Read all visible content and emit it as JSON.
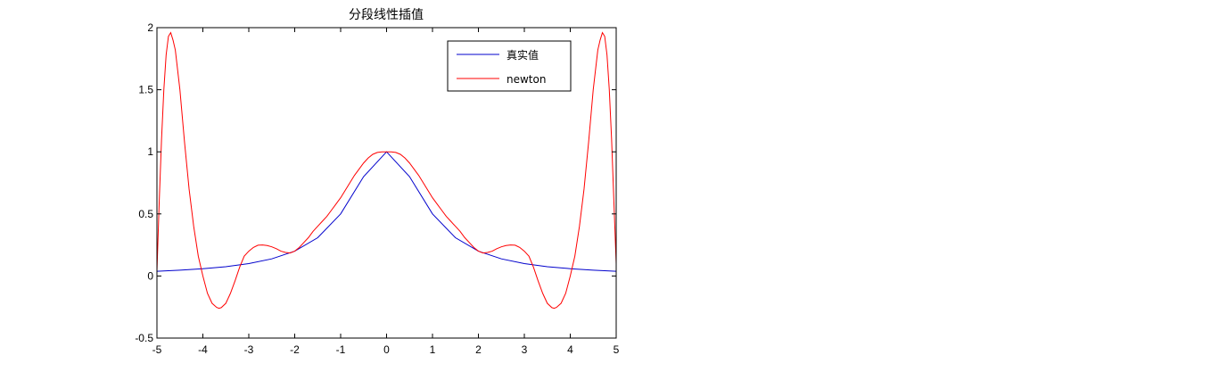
{
  "chart_data": {
    "type": "line",
    "title": "分段线性插值",
    "xlabel": "",
    "ylabel": "",
    "xlim": [
      -5,
      5
    ],
    "ylim": [
      -0.5,
      2
    ],
    "xticks": [
      -5,
      -4,
      -3,
      -2,
      -1,
      0,
      1,
      2,
      3,
      4,
      5
    ],
    "yticks": [
      -0.5,
      0,
      0.5,
      1,
      1.5,
      2
    ],
    "xtick_labels": [
      "-5",
      "-4",
      "-3",
      "-2",
      "-1",
      "0",
      "1",
      "2",
      "3",
      "4",
      "5"
    ],
    "ytick_labels": [
      "-0.5",
      "0",
      "0.5",
      "1",
      "1.5",
      "2"
    ],
    "grid": false,
    "legend_position": "top-right",
    "series": [
      {
        "name": "真实值",
        "color": "#0000cc",
        "x": [
          -5,
          -4.5,
          -4,
          -3.5,
          -3,
          -2.5,
          -2,
          -1.5,
          -1,
          -0.5,
          0,
          0.5,
          1,
          1.5,
          2,
          2.5,
          3,
          3.5,
          4,
          4.5,
          5
        ],
        "y": [
          0.038,
          0.047,
          0.059,
          0.075,
          0.1,
          0.138,
          0.2,
          0.308,
          0.5,
          0.8,
          1.0,
          0.8,
          0.5,
          0.308,
          0.2,
          0.138,
          0.1,
          0.075,
          0.059,
          0.047,
          0.038
        ]
      },
      {
        "name": "newton",
        "color": "#ff0000",
        "x": [
          -5,
          -4.95,
          -4.9,
          -4.85,
          -4.8,
          -4.75,
          -4.7,
          -4.65,
          -4.6,
          -4.5,
          -4.4,
          -4.3,
          -4.2,
          -4.1,
          -4.0,
          -3.9,
          -3.8,
          -3.7,
          -3.65,
          -3.6,
          -3.5,
          -3.4,
          -3.3,
          -3.2,
          -3.1,
          -3.0,
          -2.9,
          -2.8,
          -2.7,
          -2.6,
          -2.5,
          -2.4,
          -2.3,
          -2.2,
          -2.1,
          -2.0,
          -1.9,
          -1.8,
          -1.7,
          -1.6,
          -1.5,
          -1.4,
          -1.3,
          -1.2,
          -1.1,
          -1.0,
          -0.9,
          -0.8,
          -0.7,
          -0.6,
          -0.5,
          -0.4,
          -0.3,
          -0.2,
          -0.1,
          0,
          0.1,
          0.2,
          0.3,
          0.4,
          0.5,
          0.6,
          0.7,
          0.8,
          0.9,
          1.0,
          1.1,
          1.2,
          1.3,
          1.4,
          1.5,
          1.6,
          1.7,
          1.8,
          1.9,
          2.0,
          2.1,
          2.2,
          2.3,
          2.4,
          2.5,
          2.6,
          2.7,
          2.8,
          2.9,
          3.0,
          3.1,
          3.2,
          3.3,
          3.4,
          3.5,
          3.6,
          3.65,
          3.7,
          3.8,
          3.9,
          4.0,
          4.1,
          4.2,
          4.3,
          4.4,
          4.5,
          4.6,
          4.65,
          4.7,
          4.75,
          4.8,
          4.85,
          4.9,
          4.95,
          5
        ],
        "y": [
          0.038,
          0.6,
          1.1,
          1.5,
          1.78,
          1.93,
          1.96,
          1.9,
          1.82,
          1.5,
          1.08,
          0.7,
          0.4,
          0.16,
          0.0,
          -0.14,
          -0.22,
          -0.253,
          -0.26,
          -0.255,
          -0.22,
          -0.14,
          -0.04,
          0.07,
          0.16,
          0.2,
          0.23,
          0.248,
          0.25,
          0.245,
          0.235,
          0.22,
          0.2,
          0.19,
          0.185,
          0.2,
          0.23,
          0.27,
          0.31,
          0.36,
          0.4,
          0.44,
          0.48,
          0.53,
          0.58,
          0.63,
          0.69,
          0.75,
          0.81,
          0.86,
          0.91,
          0.95,
          0.98,
          0.995,
          1.0,
          1.0,
          1.0,
          0.995,
          0.98,
          0.95,
          0.91,
          0.86,
          0.81,
          0.75,
          0.69,
          0.63,
          0.58,
          0.53,
          0.48,
          0.44,
          0.4,
          0.36,
          0.31,
          0.27,
          0.23,
          0.2,
          0.185,
          0.19,
          0.2,
          0.22,
          0.235,
          0.245,
          0.25,
          0.248,
          0.23,
          0.2,
          0.16,
          0.07,
          -0.04,
          -0.14,
          -0.22,
          -0.255,
          -0.26,
          -0.253,
          -0.22,
          -0.14,
          0.0,
          0.16,
          0.4,
          0.7,
          1.08,
          1.5,
          1.82,
          1.9,
          1.96,
          1.93,
          1.78,
          1.5,
          1.1,
          0.6,
          0.1
        ]
      }
    ]
  }
}
